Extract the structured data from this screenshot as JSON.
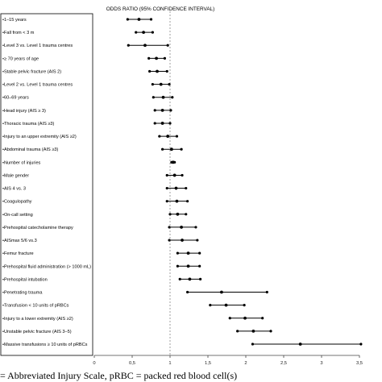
{
  "caption": "= Abbreviated Injury Scale, pRBC = packed red blood cell(s)",
  "chart_data": {
    "type": "forest",
    "title": "ODDS RATIO (95% CONFIDENCE INTERVAL)",
    "xlim": [
      0,
      3.5
    ],
    "reference_line": 1,
    "x_ticks": [
      "0",
      "0,5",
      "1",
      "1,5",
      "2",
      "2,5",
      "3",
      "3,5"
    ],
    "x_tick_values": [
      0,
      0.5,
      1,
      1.5,
      2,
      2.5,
      3,
      3.5
    ],
    "rows": [
      {
        "label": "1–15 years",
        "or": 0.59,
        "lo": 0.44,
        "hi": 0.75
      },
      {
        "label": "Fall from < 3 m",
        "or": 0.65,
        "lo": 0.55,
        "hi": 0.77
      },
      {
        "label": "Level 3 vs. Level 1 trauma centres",
        "or": 0.67,
        "lo": 0.45,
        "hi": 0.97
      },
      {
        "label": "≥ 70 years of age",
        "or": 0.82,
        "lo": 0.72,
        "hi": 0.93
      },
      {
        "label": "Stable pelvic fracture (AIS 2)",
        "or": 0.83,
        "lo": 0.73,
        "hi": 0.96
      },
      {
        "label": "Level 2 vs. Level 1 trauma centres",
        "or": 0.88,
        "lo": 0.77,
        "hi": 0.99
      },
      {
        "label": "60–69 years",
        "or": 0.91,
        "lo": 0.78,
        "hi": 1.03
      },
      {
        "label": "Head injury (AIS ≥ 3)",
        "or": 0.9,
        "lo": 0.8,
        "hi": 1.01
      },
      {
        "label": "Thoracic trauma (AIS ≥3)",
        "or": 0.9,
        "lo": 0.8,
        "hi": 1.0
      },
      {
        "label": "Injury to an upper extremity (AIS ≥2)",
        "or": 0.97,
        "lo": 0.86,
        "hi": 1.09
      },
      {
        "label": "Abdominal trauma  (AIS ≥3)",
        "or": 1.02,
        "lo": 0.9,
        "hi": 1.15
      },
      {
        "label": "Number of injuries",
        "or": 1.04,
        "lo": 1.02,
        "hi": 1.06
      },
      {
        "label": "Male gender",
        "or": 1.06,
        "lo": 0.96,
        "hi": 1.16
      },
      {
        "label": "AIS 4 vs. 3",
        "or": 1.08,
        "lo": 0.96,
        "hi": 1.21
      },
      {
        "label": "Coagulopathy",
        "or": 1.09,
        "lo": 0.96,
        "hi": 1.23
      },
      {
        "label": "On-call setting",
        "or": 1.1,
        "lo": 1.0,
        "hi": 1.21
      },
      {
        "label": "Prehospital catecholamine therapy",
        "or": 1.15,
        "lo": 0.99,
        "hi": 1.34
      },
      {
        "label": "AISmax 5/6 vs.3",
        "or": 1.16,
        "lo": 0.99,
        "hi": 1.36
      },
      {
        "label": "Femur fracture",
        "or": 1.24,
        "lo": 1.1,
        "hi": 1.39
      },
      {
        "label": "Prehospital fluid administration (> 1000 mL)",
        "or": 1.24,
        "lo": 1.1,
        "hi": 1.39
      },
      {
        "label": "Prehospital intubation",
        "or": 1.26,
        "lo": 1.13,
        "hi": 1.4
      },
      {
        "label": "Penetrating trauma",
        "or": 1.68,
        "lo": 1.23,
        "hi": 2.28
      },
      {
        "label": "Transfusion < 10 units of pRBCs",
        "or": 1.74,
        "lo": 1.53,
        "hi": 1.98
      },
      {
        "label": "Injury to a lower extremity (AIS ≥2)",
        "or": 1.99,
        "lo": 1.79,
        "hi": 2.22
      },
      {
        "label": "Unstable pelvic fracture (AIS 3–5)",
        "or": 2.1,
        "lo": 1.89,
        "hi": 2.33
      },
      {
        "label": "Massive transfusions ≥ 10 units of pRBCs",
        "or": 2.72,
        "lo": 2.09,
        "hi": 3.52
      }
    ]
  }
}
